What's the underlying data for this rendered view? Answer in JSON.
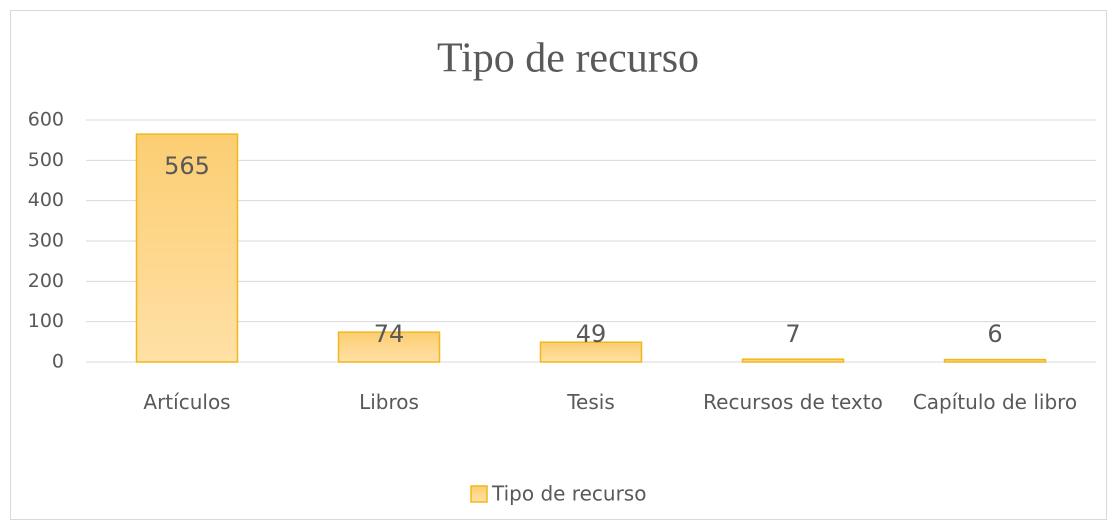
{
  "chart_data": {
    "type": "bar",
    "title": "Tipo de recurso",
    "categories": [
      "Artículos",
      "Libros",
      "Tesis",
      "Recursos de texto",
      "Capítulo de libro"
    ],
    "series": [
      {
        "name": "Tipo de recurso",
        "color": "#fdd27e",
        "values": [
          565,
          74,
          49,
          7,
          6
        ]
      }
    ],
    "ylim": [
      0,
      600
    ],
    "yticks": [
      0,
      100,
      200,
      300,
      400,
      500,
      600
    ],
    "grid": true,
    "legend": "bottom"
  }
}
